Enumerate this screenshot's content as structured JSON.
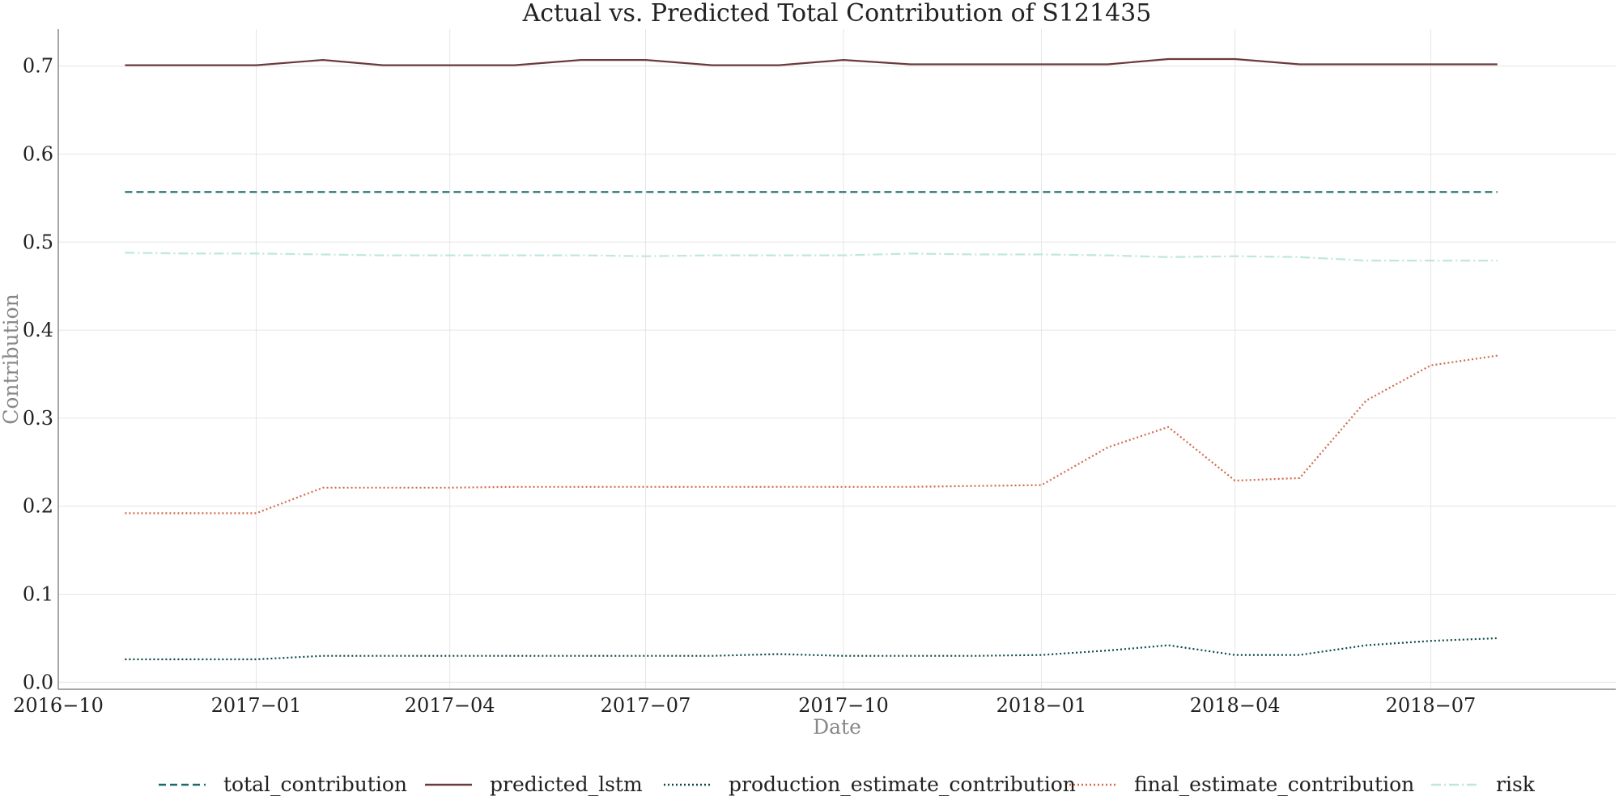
{
  "chart_data": {
    "type": "line",
    "title": "Actual vs. Predicted Total Contribution of S121435",
    "xlabel": "Date",
    "ylabel": "Contribution",
    "xlim": [
      "2016-10-01",
      "2018-09-25"
    ],
    "ylim": [
      -0.008,
      0.742
    ],
    "x_ticks": [
      "2016-10",
      "2017-01",
      "2017-04",
      "2017-07",
      "2017-10",
      "2018-01",
      "2018-04",
      "2018-07"
    ],
    "y_ticks": [
      "0.0",
      "0.1",
      "0.2",
      "0.3",
      "0.4",
      "0.5",
      "0.6",
      "0.7"
    ],
    "grid": true,
    "legend_position": "bottom",
    "x": [
      "2016-11-01",
      "2016-12-01",
      "2017-01-01",
      "2017-02-01",
      "2017-03-01",
      "2017-04-01",
      "2017-05-01",
      "2017-06-01",
      "2017-07-01",
      "2017-08-01",
      "2017-09-01",
      "2017-10-01",
      "2017-11-01",
      "2017-12-01",
      "2018-01-01",
      "2018-02-01",
      "2018-03-01",
      "2018-04-01",
      "2018-05-01",
      "2018-06-01",
      "2018-07-01",
      "2018-08-01"
    ],
    "series": [
      {
        "name": "total_contribution",
        "color": "#1a6b6b",
        "dash": "dashed",
        "values": [
          0.557,
          0.557,
          0.557,
          0.557,
          0.557,
          0.557,
          0.557,
          0.557,
          0.557,
          0.557,
          0.557,
          0.557,
          0.557,
          0.557,
          0.557,
          0.557,
          0.557,
          0.557,
          0.557,
          0.557,
          0.557,
          0.557
        ]
      },
      {
        "name": "predicted_lstm",
        "color": "#6b3a3a",
        "dash": "solid",
        "values": [
          0.701,
          0.701,
          0.701,
          0.707,
          0.701,
          0.701,
          0.701,
          0.707,
          0.707,
          0.701,
          0.701,
          0.707,
          0.702,
          0.702,
          0.702,
          0.702,
          0.708,
          0.708,
          0.702,
          0.702,
          0.702,
          0.702
        ]
      },
      {
        "name": "production_estimate_contribution",
        "color": "#0b4747",
        "dash": "dotted",
        "values": [
          0.026,
          0.026,
          0.026,
          0.03,
          0.03,
          0.03,
          0.03,
          0.03,
          0.03,
          0.03,
          0.032,
          0.03,
          0.03,
          0.03,
          0.031,
          0.036,
          0.042,
          0.031,
          0.031,
          0.042,
          0.047,
          0.05
        ]
      },
      {
        "name": "final_estimate_contribution",
        "color": "#d2694b",
        "dash": "dotted",
        "values": [
          0.192,
          0.192,
          0.192,
          0.221,
          0.221,
          0.221,
          0.222,
          0.222,
          0.222,
          0.222,
          0.222,
          0.222,
          0.222,
          0.223,
          0.224,
          0.267,
          0.29,
          0.229,
          0.232,
          0.32,
          0.36,
          0.371
        ]
      },
      {
        "name": "risk",
        "color": "#bfe6e0",
        "dash": "dashdot",
        "values": [
          0.488,
          0.487,
          0.487,
          0.486,
          0.485,
          0.485,
          0.485,
          0.485,
          0.484,
          0.485,
          0.485,
          0.485,
          0.487,
          0.486,
          0.486,
          0.485,
          0.483,
          0.484,
          0.483,
          0.479,
          0.479,
          0.479
        ]
      }
    ]
  }
}
